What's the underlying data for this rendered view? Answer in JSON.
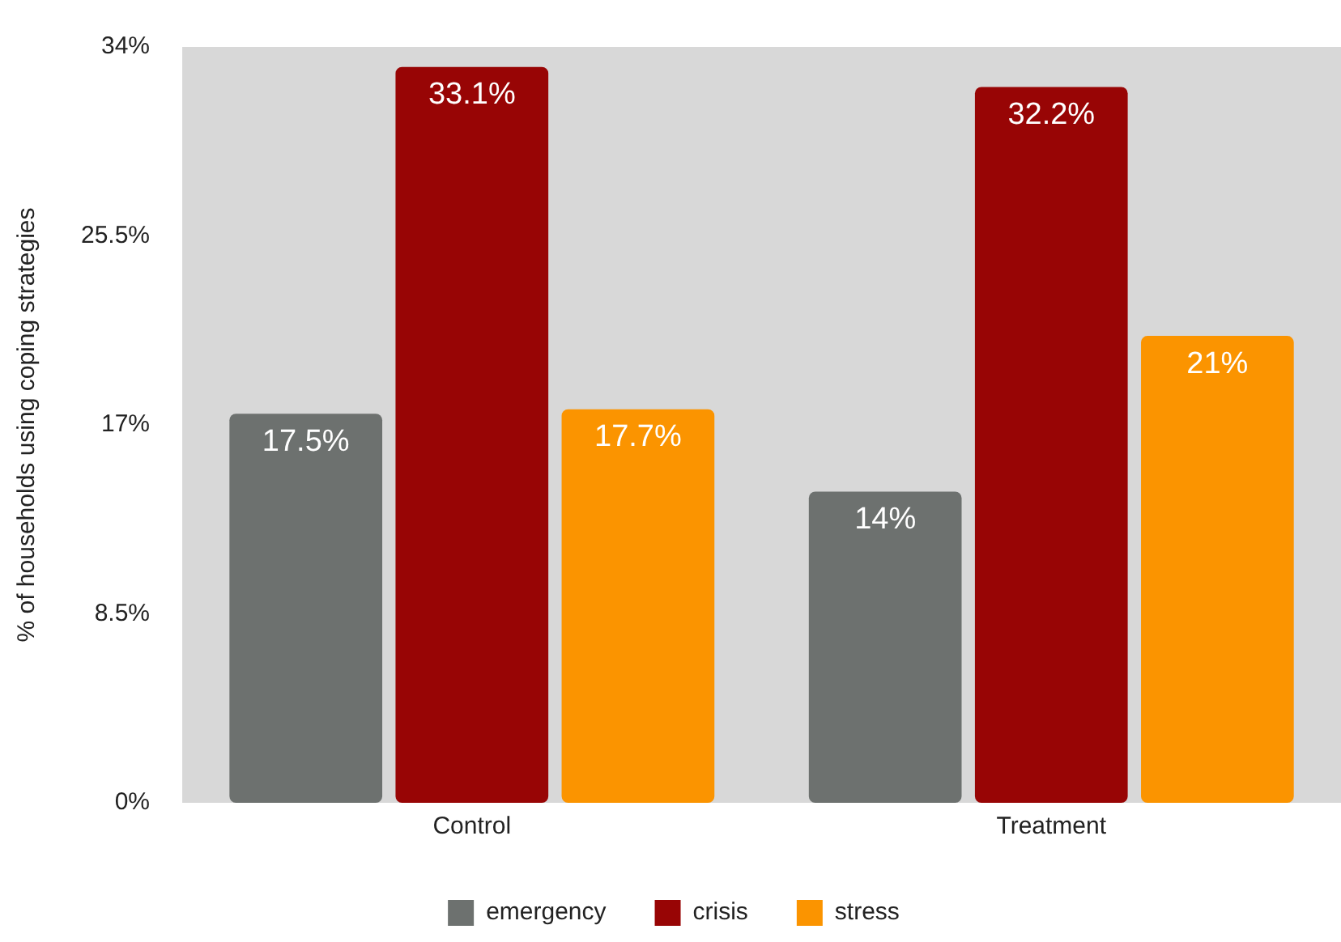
{
  "chart_data": {
    "type": "bar",
    "ylabel": "% of households using coping strategies",
    "categories": [
      "Control",
      "Treatment"
    ],
    "series": [
      {
        "name": "emergency",
        "color": "#6d716f",
        "values": [
          17.5,
          14
        ],
        "value_labels": [
          "17.5%",
          "14%"
        ]
      },
      {
        "name": "crisis",
        "color": "#980505",
        "values": [
          33.1,
          32.2
        ],
        "value_labels": [
          "33.1%",
          "32.2%"
        ]
      },
      {
        "name": "stress",
        "color": "#fb9400",
        "values": [
          17.7,
          21
        ],
        "value_labels": [
          "17.7%",
          "21%"
        ]
      }
    ],
    "ylim": [
      0,
      34
    ],
    "yticks": [
      {
        "value": 0,
        "label": "0%"
      },
      {
        "value": 8.5,
        "label": "8.5%"
      },
      {
        "value": 17,
        "label": "17%"
      },
      {
        "value": 25.5,
        "label": "25.5%"
      },
      {
        "value": 34,
        "label": "34%"
      }
    ],
    "grid": false,
    "legend": "bottom"
  }
}
